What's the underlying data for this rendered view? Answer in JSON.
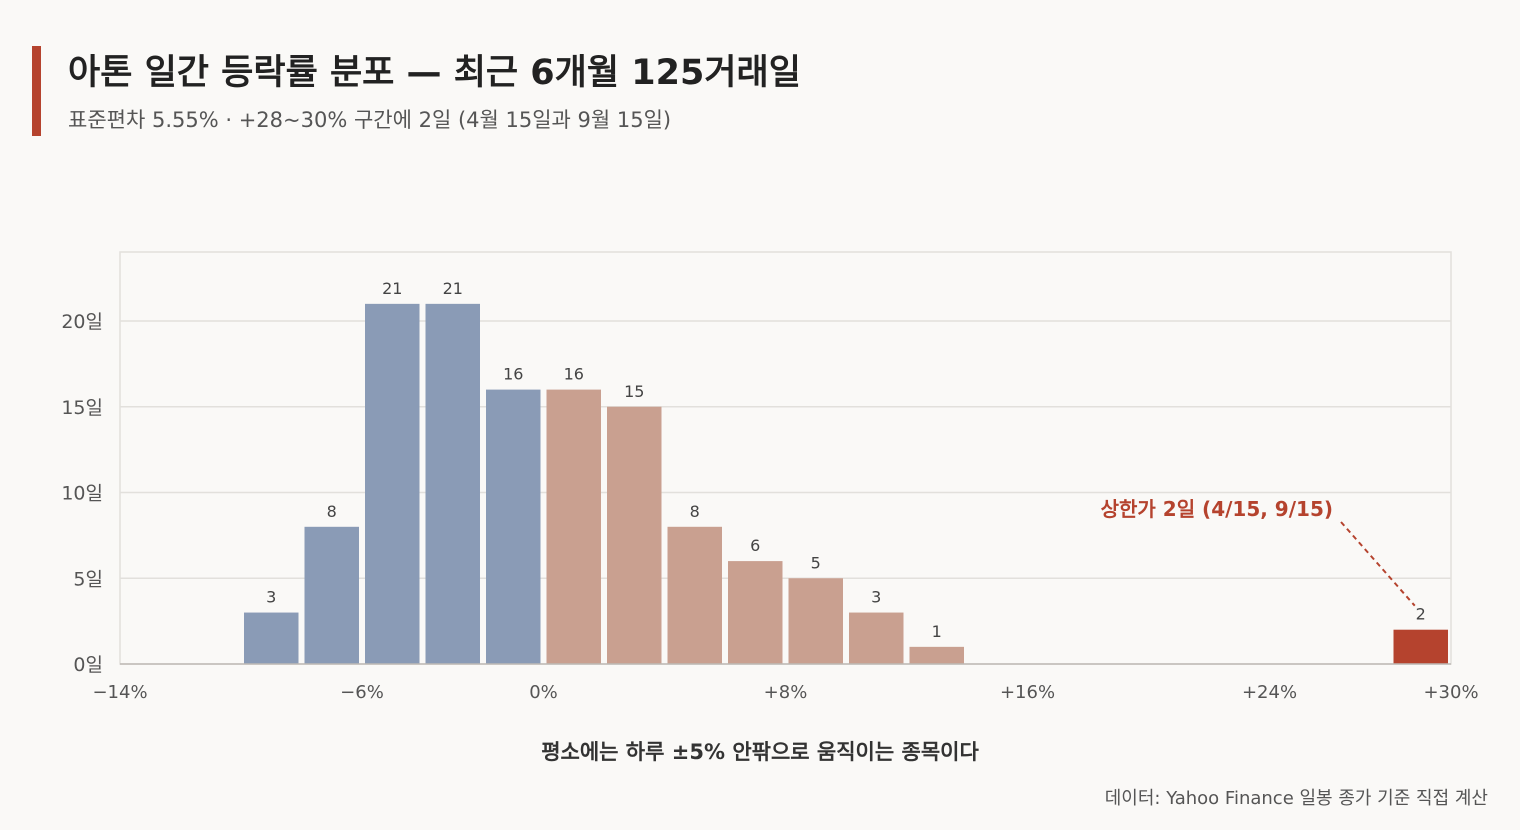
{
  "header": {
    "title": "아톤 일간 등락률 분포 — 최근 6개월 125거래일",
    "subtitle": "표준편차 5.55% · +28~30% 구간에 2일 (4월 15일과 9월 15일)"
  },
  "caption": "평소에는 하루 ±5% 안팎으로 움직이는 종목이다",
  "source": "데이터: Yahoo Finance 일봉 종가 기준 직접 계산",
  "colors": {
    "negative": "#8a9bb6",
    "positive": "#c9a090",
    "limit_up": "#b5432e",
    "grid": "#e2e0dc",
    "annotation": "#b5432e"
  },
  "chart_data": {
    "type": "bar",
    "xlim": [
      -14,
      30
    ],
    "ylim": [
      0,
      20.6
    ],
    "bin_width": 2,
    "bins": [
      {
        "from": -10,
        "to": -8,
        "value": 3,
        "label": "3",
        "color": "negative"
      },
      {
        "from": -8,
        "to": -6,
        "value": 8,
        "label": "8",
        "color": "negative"
      },
      {
        "from": -6,
        "to": -4,
        "value": 21,
        "label": "21",
        "color": "negative"
      },
      {
        "from": -4,
        "to": -2,
        "value": 21,
        "label": "21",
        "color": "negative"
      },
      {
        "from": -2,
        "to": 0,
        "value": 16,
        "label": "16",
        "color": "negative"
      },
      {
        "from": 0,
        "to": 2,
        "value": 16,
        "label": "16",
        "color": "positive"
      },
      {
        "from": 2,
        "to": 4,
        "value": 15,
        "label": "15",
        "color": "positive"
      },
      {
        "from": 4,
        "to": 6,
        "value": 8,
        "label": "8",
        "color": "positive"
      },
      {
        "from": 6,
        "to": 8,
        "value": 6,
        "label": "6",
        "color": "positive"
      },
      {
        "from": 8,
        "to": 10,
        "value": 5,
        "label": "5",
        "color": "positive"
      },
      {
        "from": 10,
        "to": 12,
        "value": 3,
        "label": "3",
        "color": "positive"
      },
      {
        "from": 12,
        "to": 14,
        "value": 1,
        "label": "1",
        "color": "positive"
      },
      {
        "from": 28,
        "to": 30,
        "value": 2,
        "label": "2",
        "color": "limit_up"
      }
    ],
    "x_ticks": [
      {
        "value": -14,
        "label": "−14%"
      },
      {
        "value": -6,
        "label": "−6%"
      },
      {
        "value": 0,
        "label": "0%"
      },
      {
        "value": 8,
        "label": "+8%"
      },
      {
        "value": 16,
        "label": "+16%"
      },
      {
        "value": 24,
        "label": "+24%"
      },
      {
        "value": 30,
        "label": "+30%"
      }
    ],
    "y_ticks": [
      {
        "value": 0,
        "label": "0일"
      },
      {
        "value": 5,
        "label": "5일"
      },
      {
        "value": 10,
        "label": "10일"
      },
      {
        "value": 15,
        "label": "15일"
      },
      {
        "value": 20,
        "label": "20일"
      }
    ],
    "grid": true,
    "annotation": {
      "text": "상한가 2일 (4/15, 9/15)",
      "target_bin": 12
    }
  }
}
